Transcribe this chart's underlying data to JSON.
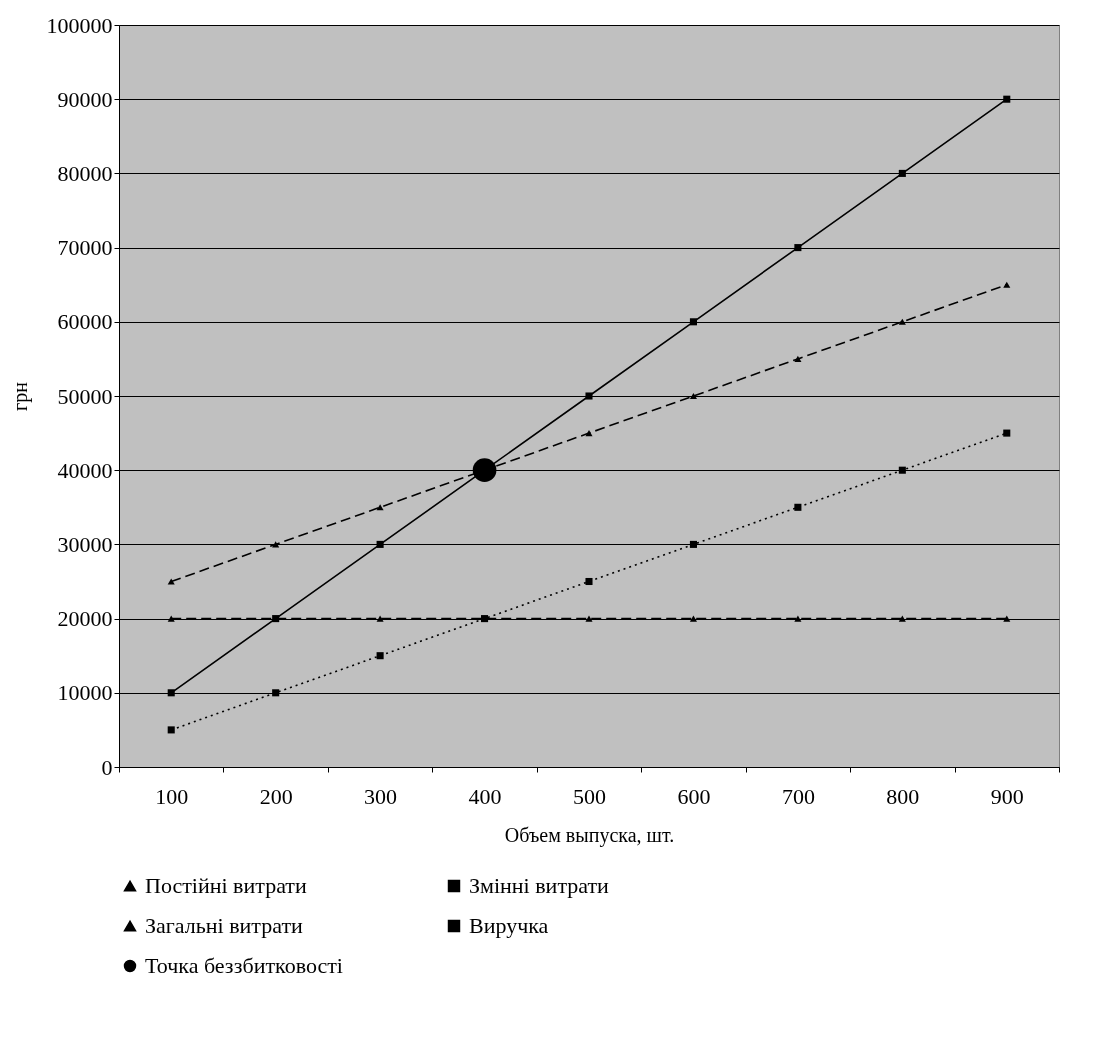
{
  "chart_data": {
    "type": "line",
    "categories": [
      "100",
      "200",
      "300",
      "400",
      "500",
      "600",
      "700",
      "800",
      "900"
    ],
    "xlabel": "Объем выпуска, шт.",
    "ylabel": "грн",
    "ylim": [
      0,
      100000
    ],
    "yticks": [
      0,
      10000,
      20000,
      30000,
      40000,
      50000,
      60000,
      70000,
      80000,
      90000,
      100000
    ],
    "grid": "y",
    "legend": "bottom",
    "series": [
      {
        "name": "Постійні витрати",
        "color": "#000000",
        "marker": "triangle",
        "line_style": "dashed",
        "values": [
          20000,
          20000,
          20000,
          20000,
          20000,
          20000,
          20000,
          20000,
          20000
        ]
      },
      {
        "name": "Змінні витрати",
        "color": "#000000",
        "marker": "square",
        "line_style": "dotted",
        "values": [
          5000,
          10000,
          15000,
          20000,
          25000,
          30000,
          35000,
          40000,
          45000
        ]
      },
      {
        "name": "Загальні витрати",
        "color": "#000000",
        "marker": "triangle",
        "line_style": "dashed",
        "values": [
          25000,
          30000,
          35000,
          40000,
          45000,
          50000,
          55000,
          60000,
          65000
        ]
      },
      {
        "name": "Виручка",
        "color": "#000000",
        "marker": "square",
        "line_style": "solid",
        "values": [
          10000,
          20000,
          30000,
          40000,
          50000,
          60000,
          70000,
          80000,
          90000
        ]
      },
      {
        "name": "Точка беззбитковості",
        "type": "scatter",
        "color": "#000000",
        "marker": "circle",
        "x": [
          "400"
        ],
        "values": [
          40000
        ]
      }
    ]
  }
}
